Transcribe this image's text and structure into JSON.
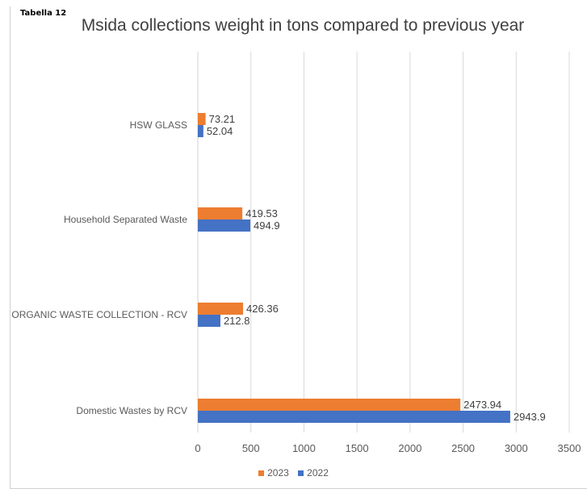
{
  "tag": "Tabella 12",
  "colors": {
    "series_2023": "#ed7d31",
    "series_2022": "#4472c4",
    "grid": "#d9d9d9",
    "text": "#595959"
  },
  "chart_data": {
    "type": "bar",
    "orientation": "horizontal",
    "title": "Msida collections weight in tons compared to previous year",
    "categories": [
      "HSW GLASS",
      "Household Separated Waste",
      "ORGANIC WASTE COLLECTION - RCV",
      "Domestic Wastes by RCV"
    ],
    "series": [
      {
        "name": "2023",
        "values": [
          73.21,
          419.53,
          426.36,
          2473.94
        ]
      },
      {
        "name": "2022",
        "values": [
          52.04,
          494.9,
          212.8,
          2943.9
        ]
      }
    ],
    "value_labels": {
      "2023": [
        "73.21",
        "419.53",
        "426.36",
        "2473.94"
      ],
      "2022": [
        "52.04",
        "494.9",
        "212.8",
        "2943.9"
      ]
    },
    "xlim": [
      0,
      3500
    ],
    "xticks": [
      "0",
      "500",
      "1000",
      "1500",
      "2000",
      "2500",
      "3000",
      "3500"
    ],
    "grid": "vertical",
    "legend": "bottom"
  }
}
